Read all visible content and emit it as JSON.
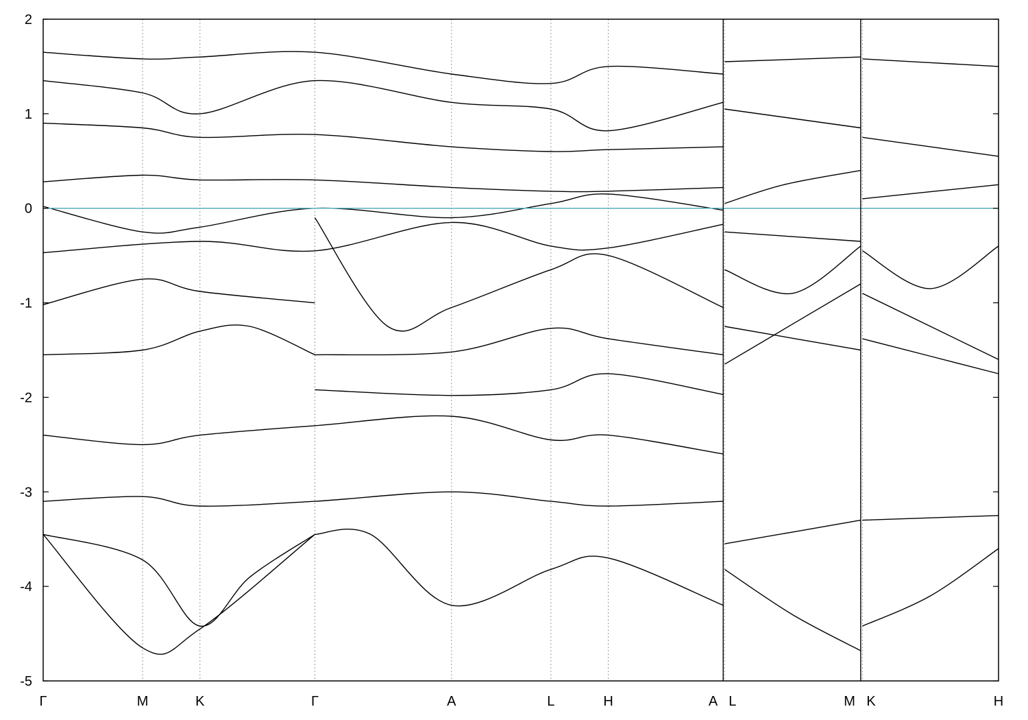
{
  "chart_data": {
    "type": "line",
    "title": "",
    "xlabel": "",
    "ylabel": "",
    "ylim": [
      -5,
      2
    ],
    "y_ticks": [
      2,
      1,
      0,
      -1,
      -2,
      -3,
      -4,
      -5
    ],
    "y_tick_labels": [
      "2",
      "1",
      "0",
      "-1",
      "-2",
      "-3",
      "-4",
      "-5"
    ],
    "grid": "vertical dotted lines at high-symmetry points",
    "fermi_level": 0,
    "fermi_line_color": "#5aaec0",
    "band_color": "#000000",
    "high_symmetry_points": [
      {
        "label": "Γ",
        "x": 0
      },
      {
        "label": "M",
        "x": 0.577
      },
      {
        "label": "K",
        "x": 0.91
      },
      {
        "label": "Γ",
        "x": 1.577
      },
      {
        "label": "A",
        "x": 2.37
      },
      {
        "label": "L",
        "x": 2.947
      },
      {
        "label": "H",
        "x": 3.28
      },
      {
        "label": "A",
        "x": 3.947
      },
      {
        "label": "L",
        "x": 3.955
      },
      {
        "label": "M",
        "x": 4.745
      },
      {
        "label": "K",
        "x": 4.755
      },
      {
        "label": "H",
        "x": 5.545
      }
    ],
    "x_range": [
      0,
      5.545
    ],
    "panel_breaks_x": [
      3.947,
      4.745
    ],
    "notes": "Electronic band structure; bands listed are representative traces read from the figure.",
    "series": [
      {
        "x": [
          0,
          0.577,
          0.91,
          1.577
        ],
        "y": [
          -3.45,
          -4.65,
          -4.45,
          -3.45
        ]
      },
      {
        "x": [
          0,
          0.577,
          0.91,
          1.2,
          1.577
        ],
        "y": [
          -3.45,
          -3.72,
          -4.42,
          -3.9,
          -3.45
        ]
      },
      {
        "x": [
          1.577,
          1.9,
          2.37,
          2.947,
          3.28,
          3.947
        ],
        "y": [
          -3.45,
          -3.45,
          -4.2,
          -3.82,
          -3.7,
          -4.2
        ]
      },
      {
        "x": [
          3.955,
          4.35,
          4.745
        ],
        "y": [
          -3.82,
          -4.3,
          -4.68
        ]
      },
      {
        "x": [
          4.755,
          5.15,
          5.545
        ],
        "y": [
          -4.42,
          -4.1,
          -3.6
        ]
      },
      {
        "x": [
          0,
          0.577,
          0.91,
          1.577
        ],
        "y": [
          -1.02,
          -0.75,
          -0.88,
          -1.0
        ]
      },
      {
        "x": [
          0,
          0.577,
          0.91,
          1.2,
          1.577
        ],
        "y": [
          -1.55,
          -1.5,
          -1.3,
          -1.25,
          -1.55
        ]
      },
      {
        "x": [
          1.577,
          2.0,
          2.37,
          2.947,
          3.28,
          3.947
        ],
        "y": [
          -0.1,
          -1.25,
          -1.05,
          -0.65,
          -0.5,
          -1.05
        ]
      },
      {
        "x": [
          1.577,
          2.37,
          2.947,
          3.28,
          3.947
        ],
        "y": [
          -1.55,
          -1.52,
          -1.27,
          -1.38,
          -1.55
        ]
      },
      {
        "x": [
          0,
          0.91,
          1.577,
          2.37,
          2.947,
          3.28,
          3.947
        ],
        "y": [
          -0.47,
          -0.35,
          -0.45,
          -0.15,
          -0.4,
          -0.42,
          -0.17
        ]
      },
      {
        "x": [
          0,
          0.577,
          0.91,
          1.577,
          2.37,
          2.947,
          3.28,
          3.947
        ],
        "y": [
          0.02,
          -0.25,
          -0.2,
          0.0,
          -0.1,
          0.05,
          0.15,
          -0.02
        ]
      },
      {
        "x": [
          0,
          0.577,
          0.91,
          1.577,
          2.37,
          2.947,
          3.28,
          3.947
        ],
        "y": [
          0.28,
          0.35,
          0.3,
          0.3,
          0.22,
          0.18,
          0.18,
          0.22
        ]
      },
      {
        "x": [
          0,
          0.577,
          0.91,
          1.577,
          2.37,
          2.947,
          3.28,
          3.947
        ],
        "y": [
          0.9,
          0.85,
          0.75,
          0.78,
          0.65,
          0.6,
          0.62,
          0.65
        ]
      },
      {
        "x": [
          0,
          0.577,
          0.91,
          1.577,
          2.37,
          2.947,
          3.28,
          3.947
        ],
        "y": [
          1.35,
          1.22,
          1.0,
          1.35,
          1.12,
          1.05,
          0.82,
          1.12
        ]
      },
      {
        "x": [
          0,
          0.577,
          0.91,
          1.577,
          2.37,
          2.947,
          3.28,
          3.947
        ],
        "y": [
          1.65,
          1.58,
          1.6,
          1.65,
          1.42,
          1.32,
          1.5,
          1.42
        ]
      },
      {
        "x": [
          1.577,
          2.37,
          2.947,
          3.28,
          3.947
        ],
        "y": [
          -1.92,
          -1.98,
          -1.92,
          -1.75,
          -1.97
        ]
      },
      {
        "x": [
          0,
          0.577,
          0.91,
          1.577,
          2.37,
          2.947,
          3.28,
          3.947
        ],
        "y": [
          -2.4,
          -2.5,
          -2.4,
          -2.3,
          -2.2,
          -2.45,
          -2.4,
          -2.6
        ]
      },
      {
        "x": [
          0,
          0.577,
          0.91,
          1.577,
          2.37,
          2.947,
          3.28,
          3.947
        ],
        "y": [
          -3.1,
          -3.05,
          -3.15,
          -3.1,
          -3.0,
          -3.1,
          -3.15,
          -3.1
        ]
      },
      {
        "x": [
          3.955,
          4.745
        ],
        "y": [
          1.55,
          1.6
        ]
      },
      {
        "x": [
          3.955,
          4.745
        ],
        "y": [
          1.05,
          0.85
        ]
      },
      {
        "x": [
          3.955,
          4.3,
          4.745
        ],
        "y": [
          0.05,
          0.25,
          0.4
        ]
      },
      {
        "x": [
          3.955,
          4.745
        ],
        "y": [
          -0.25,
          -0.35
        ]
      },
      {
        "x": [
          3.955,
          4.35,
          4.745
        ],
        "y": [
          -0.65,
          -0.9,
          -0.4
        ]
      },
      {
        "x": [
          3.955,
          4.745
        ],
        "y": [
          -1.65,
          -0.8
        ]
      },
      {
        "x": [
          3.955,
          4.745
        ],
        "y": [
          -1.25,
          -1.5
        ]
      },
      {
        "x": [
          3.955,
          4.745
        ],
        "y": [
          -3.55,
          -3.3
        ]
      },
      {
        "x": [
          4.755,
          5.545
        ],
        "y": [
          1.58,
          1.5
        ]
      },
      {
        "x": [
          4.755,
          5.545
        ],
        "y": [
          0.75,
          0.55
        ]
      },
      {
        "x": [
          4.755,
          5.545
        ],
        "y": [
          0.1,
          0.25
        ]
      },
      {
        "x": [
          4.755,
          5.15,
          5.545
        ],
        "y": [
          -0.45,
          -0.85,
          -0.4
        ]
      },
      {
        "x": [
          4.755,
          5.545
        ],
        "y": [
          -0.9,
          -1.6
        ]
      },
      {
        "x": [
          4.755,
          5.545
        ],
        "y": [
          -1.38,
          -1.75
        ]
      },
      {
        "x": [
          4.755,
          5.545
        ],
        "y": [
          -3.3,
          -3.25
        ]
      }
    ]
  }
}
